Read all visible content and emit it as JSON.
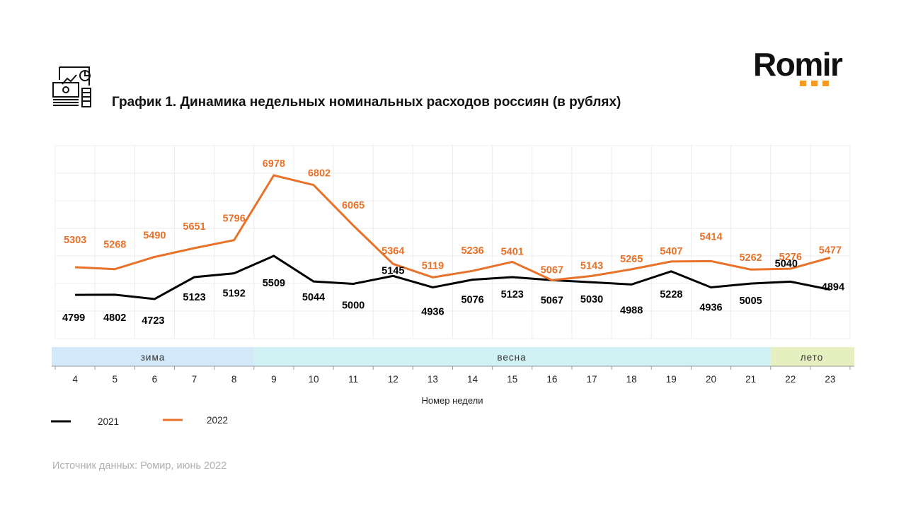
{
  "logo": {
    "text": "Romir",
    "accent_color": "#f59a23"
  },
  "title": {
    "icon": "finance-report-icon",
    "text": "График 1. Динамика недельных номинальных расходов россиян (в рублях)"
  },
  "source": "Источник данных: Ромир, июнь 2022",
  "chart_data": {
    "type": "line",
    "title": "График 1. Динамика недельных номинальных расходов россиян (в рублях)",
    "xlabel": "Номер недели",
    "ylabel": "",
    "categories": [
      "4",
      "5",
      "6",
      "7",
      "8",
      "9",
      "10",
      "11",
      "12",
      "13",
      "14",
      "15",
      "16",
      "17",
      "18",
      "19",
      "20",
      "21",
      "22",
      "23"
    ],
    "series": [
      {
        "name": "2021",
        "color": "#000000",
        "values": [
          4799,
          4802,
          4723,
          5123,
          5192,
          5509,
          5044,
          5000,
          5145,
          4936,
          5076,
          5123,
          5067,
          5030,
          4988,
          5228,
          4936,
          5005,
          5040,
          4894
        ]
      },
      {
        "name": "2022",
        "color": "#e8722a",
        "values": [
          5303,
          5268,
          5490,
          5651,
          5796,
          6978,
          6802,
          6065,
          5364,
          5119,
          5236,
          5401,
          5067,
          5143,
          5265,
          5407,
          5414,
          5262,
          5276,
          5477
        ]
      }
    ],
    "seasons": [
      {
        "label": "зима",
        "from": "4",
        "to": "8",
        "color": "#d3e8f8"
      },
      {
        "label": "весна",
        "from": "9",
        "to": "21",
        "color": "#d0f2f4"
      },
      {
        "label": "лето",
        "from": "22",
        "to": "23",
        "color": "#e6efbf"
      }
    ],
    "ylim": [
      4000,
      7000
    ],
    "grid": true,
    "y_axis_labels_shown": false,
    "legend": {
      "placement": "bottom-left",
      "entries": [
        "2021",
        "2022"
      ]
    }
  }
}
